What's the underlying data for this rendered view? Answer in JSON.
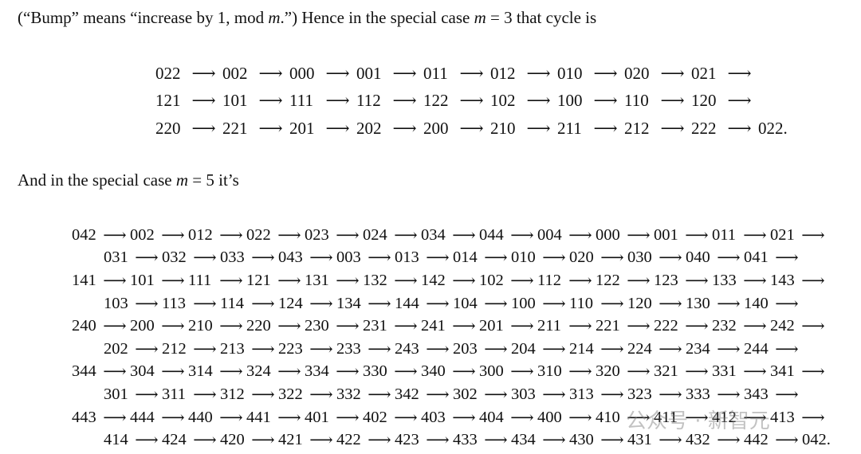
{
  "intro": {
    "before_m": "(“Bump” means “increase by 1, mod ",
    "m_var": "m",
    "after_m": ".”) Hence in the special case ",
    "m_var2": "m",
    "eq": " = 3 that cycle is"
  },
  "cycle_m3": [
    [
      "022",
      "002",
      "000",
      "001",
      "011",
      "012",
      "010",
      "020",
      "021"
    ],
    [
      "121",
      "101",
      "111",
      "112",
      "122",
      "102",
      "100",
      "110",
      "120"
    ],
    [
      "220",
      "221",
      "201",
      "202",
      "200",
      "210",
      "211",
      "212",
      "222",
      "022."
    ]
  ],
  "middle": {
    "before": "And in the special case ",
    "m_var": "m",
    "after": " = 5 it’s"
  },
  "cycle_m5": [
    [
      "042",
      "002",
      "012",
      "022",
      "023",
      "024",
      "034",
      "044",
      "004",
      "000",
      "001",
      "011",
      "021"
    ],
    [
      "031",
      "032",
      "033",
      "043",
      "003",
      "013",
      "014",
      "010",
      "020",
      "030",
      "040",
      "041"
    ],
    [
      "141",
      "101",
      "111",
      "121",
      "131",
      "132",
      "142",
      "102",
      "112",
      "122",
      "123",
      "133",
      "143"
    ],
    [
      "103",
      "113",
      "114",
      "124",
      "134",
      "144",
      "104",
      "100",
      "110",
      "120",
      "130",
      "140"
    ],
    [
      "240",
      "200",
      "210",
      "220",
      "230",
      "231",
      "241",
      "201",
      "211",
      "221",
      "222",
      "232",
      "242"
    ],
    [
      "202",
      "212",
      "213",
      "223",
      "233",
      "243",
      "203",
      "204",
      "214",
      "224",
      "234",
      "244"
    ],
    [
      "344",
      "304",
      "314",
      "324",
      "334",
      "330",
      "340",
      "300",
      "310",
      "320",
      "321",
      "331",
      "341"
    ],
    [
      "301",
      "311",
      "312",
      "322",
      "332",
      "342",
      "302",
      "303",
      "313",
      "323",
      "333",
      "343"
    ],
    [
      "443",
      "444",
      "440",
      "441",
      "401",
      "402",
      "403",
      "404",
      "400",
      "410",
      "411",
      "412",
      "413"
    ],
    [
      "414",
      "424",
      "420",
      "421",
      "422",
      "423",
      "433",
      "434",
      "430",
      "431",
      "432",
      "442",
      "042."
    ]
  ],
  "watermark": "公众号 · 新智元"
}
